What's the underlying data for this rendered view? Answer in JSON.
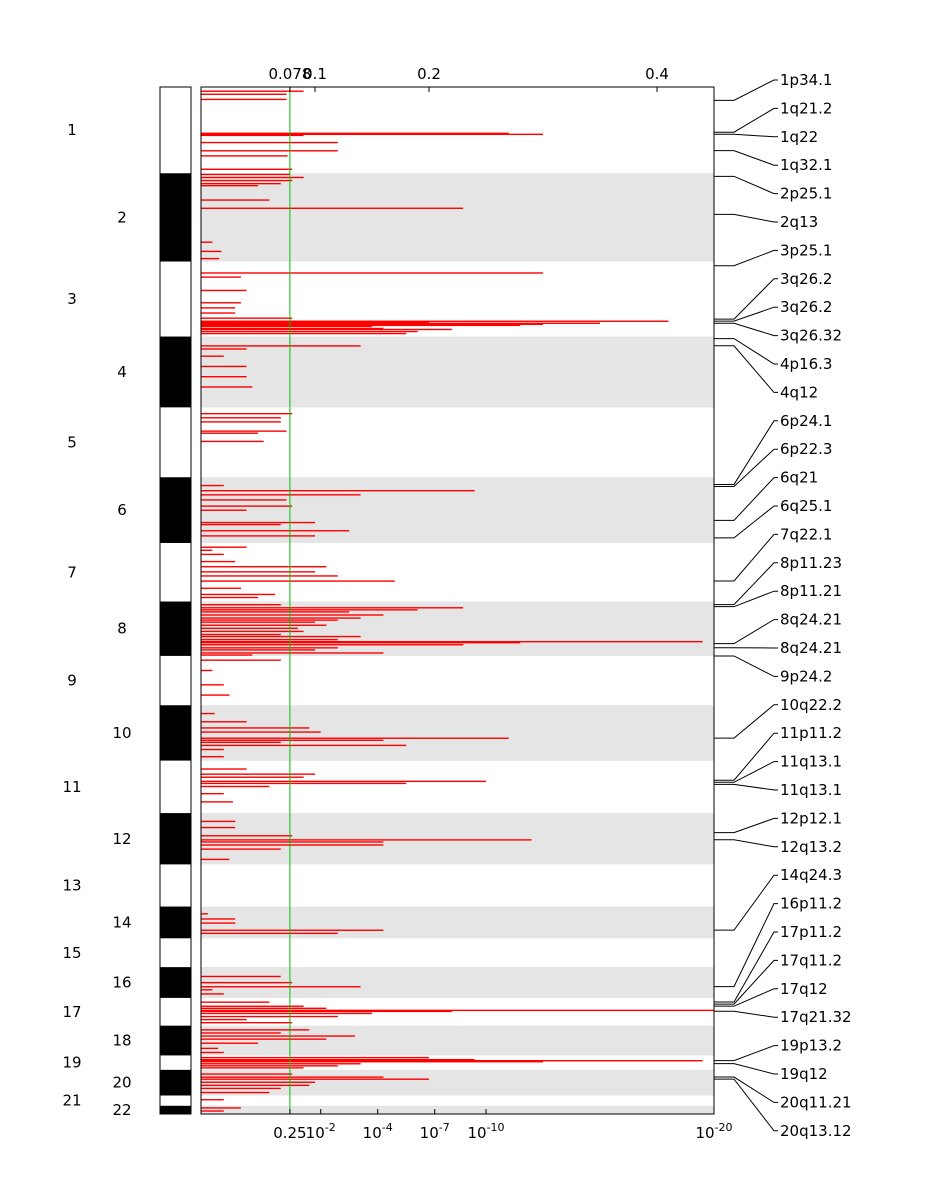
{
  "chart_data": {
    "type": "bar",
    "orientation": "horizontal",
    "title": "",
    "colors": {
      "bar": "#ff0000",
      "threshold_line": "#00c000",
      "band_shade": "#e5e5e5",
      "ideogram_dark": "#000000",
      "ideogram_light": "#ffffff"
    },
    "x_scale_top": {
      "description": "amplitude scale",
      "range": [
        0,
        0.45
      ],
      "ticks": [
        {
          "value": 0.078,
          "label": "0.078"
        },
        {
          "value": 0.1,
          "label": "0.1"
        },
        {
          "value": 0.2,
          "label": "0.2"
        },
        {
          "value": 0.4,
          "label": "0.4"
        }
      ]
    },
    "x_scale_bottom": {
      "description": "q-value scale (log)",
      "ticks": [
        {
          "base": "0.25",
          "exp": "",
          "score": 0.078
        },
        {
          "base": "10",
          "exp": "-2",
          "score": 0.105
        },
        {
          "base": "10",
          "exp": "-4",
          "score": 0.155
        },
        {
          "base": "10",
          "exp": "-7",
          "score": 0.205
        },
        {
          "base": "10",
          "exp": "-10",
          "score": 0.25
        },
        {
          "base": "10",
          "exp": "-20",
          "score": 0.45
        }
      ]
    },
    "threshold": 0.078,
    "genome_extent": [
      0,
      1000
    ],
    "chromosomes": [
      {
        "label": "1",
        "start": 0,
        "end": 84
      },
      {
        "label": "2",
        "start": 84,
        "end": 170
      },
      {
        "label": "3",
        "start": 170,
        "end": 243
      },
      {
        "label": "4",
        "start": 243,
        "end": 312
      },
      {
        "label": "5",
        "start": 312,
        "end": 380
      },
      {
        "label": "6",
        "start": 380,
        "end": 444
      },
      {
        "label": "7",
        "start": 444,
        "end": 501
      },
      {
        "label": "8",
        "start": 501,
        "end": 554
      },
      {
        "label": "9",
        "start": 554,
        "end": 602
      },
      {
        "label": "10",
        "start": 602,
        "end": 656
      },
      {
        "label": "11",
        "start": 656,
        "end": 707
      },
      {
        "label": "12",
        "start": 707,
        "end": 757
      },
      {
        "label": "13",
        "start": 757,
        "end": 798
      },
      {
        "label": "14",
        "start": 798,
        "end": 829
      },
      {
        "label": "15",
        "start": 829,
        "end": 857
      },
      {
        "label": "16",
        "start": 857,
        "end": 887
      },
      {
        "label": "17",
        "start": 887,
        "end": 914
      },
      {
        "label": "18",
        "start": 914,
        "end": 943
      },
      {
        "label": "19",
        "start": 943,
        "end": 957
      },
      {
        "label": "20",
        "start": 957,
        "end": 982
      },
      {
        "label": "21",
        "start": 982,
        "end": 992
      },
      {
        "label": "22",
        "start": 992,
        "end": 1000
      }
    ],
    "peaks": [
      {
        "pos": 4,
        "score": 0.09
      },
      {
        "pos": 7,
        "score": 0.075
      },
      {
        "pos": 12,
        "score": 0.075
      },
      {
        "pos": 45,
        "score": 0.27
      },
      {
        "pos": 46,
        "score": 0.3
      },
      {
        "pos": 47,
        "score": 0.09
      },
      {
        "pos": 54,
        "score": 0.12
      },
      {
        "pos": 62,
        "score": 0.12
      },
      {
        "pos": 67,
        "score": 0.076
      },
      {
        "pos": 80,
        "score": 0.08
      },
      {
        "pos": 85,
        "score": 0.078
      },
      {
        "pos": 88,
        "score": 0.09
      },
      {
        "pos": 91,
        "score": 0.08
      },
      {
        "pos": 94,
        "score": 0.07
      },
      {
        "pos": 96,
        "score": 0.05
      },
      {
        "pos": 110,
        "score": 0.06
      },
      {
        "pos": 118,
        "score": 0.23
      },
      {
        "pos": 151,
        "score": 0.01
      },
      {
        "pos": 160,
        "score": 0.018
      },
      {
        "pos": 167,
        "score": 0.016
      },
      {
        "pos": 181,
        "score": 0.3
      },
      {
        "pos": 185,
        "score": 0.035
      },
      {
        "pos": 198,
        "score": 0.04
      },
      {
        "pos": 210,
        "score": 0.035
      },
      {
        "pos": 215,
        "score": 0.03
      },
      {
        "pos": 220,
        "score": 0.03
      },
      {
        "pos": 225,
        "score": 0.08
      },
      {
        "pos": 228,
        "score": 0.41
      },
      {
        "pos": 229,
        "score": 0.2
      },
      {
        "pos": 230,
        "score": 0.35
      },
      {
        "pos": 231,
        "score": 0.3
      },
      {
        "pos": 232,
        "score": 0.28
      },
      {
        "pos": 233,
        "score": 0.15
      },
      {
        "pos": 235,
        "score": 0.16
      },
      {
        "pos": 236,
        "score": 0.22
      },
      {
        "pos": 238,
        "score": 0.19
      },
      {
        "pos": 240,
        "score": 0.18
      },
      {
        "pos": 252,
        "score": 0.14
      },
      {
        "pos": 255,
        "score": 0.04
      },
      {
        "pos": 262,
        "score": 0.02
      },
      {
        "pos": 272,
        "score": 0.04
      },
      {
        "pos": 282,
        "score": 0.04
      },
      {
        "pos": 292,
        "score": 0.045
      },
      {
        "pos": 318,
        "score": 0.08
      },
      {
        "pos": 322,
        "score": 0.07
      },
      {
        "pos": 326,
        "score": 0.07
      },
      {
        "pos": 335,
        "score": 0.075
      },
      {
        "pos": 337,
        "score": 0.05
      },
      {
        "pos": 345,
        "score": 0.055
      },
      {
        "pos": 388,
        "score": 0.02
      },
      {
        "pos": 393,
        "score": 0.24
      },
      {
        "pos": 397,
        "score": 0.14
      },
      {
        "pos": 402,
        "score": 0.075
      },
      {
        "pos": 408,
        "score": 0.08
      },
      {
        "pos": 412,
        "score": 0.04
      },
      {
        "pos": 424,
        "score": 0.1
      },
      {
        "pos": 426,
        "score": 0.07
      },
      {
        "pos": 432,
        "score": 0.13
      },
      {
        "pos": 437,
        "score": 0.1
      },
      {
        "pos": 448,
        "score": 0.04
      },
      {
        "pos": 451,
        "score": 0.01
      },
      {
        "pos": 455,
        "score": 0.02
      },
      {
        "pos": 462,
        "score": 0.03
      },
      {
        "pos": 467,
        "score": 0.11
      },
      {
        "pos": 472,
        "score": 0.1
      },
      {
        "pos": 476,
        "score": 0.12
      },
      {
        "pos": 481,
        "score": 0.17
      },
      {
        "pos": 488,
        "score": 0.035
      },
      {
        "pos": 494,
        "score": 0.065
      },
      {
        "pos": 497,
        "score": 0.05
      },
      {
        "pos": 504,
        "score": 0.07
      },
      {
        "pos": 507,
        "score": 0.23
      },
      {
        "pos": 509,
        "score": 0.19
      },
      {
        "pos": 511,
        "score": 0.13
      },
      {
        "pos": 514,
        "score": 0.16
      },
      {
        "pos": 517,
        "score": 0.14
      },
      {
        "pos": 519,
        "score": 0.12
      },
      {
        "pos": 521,
        "score": 0.1
      },
      {
        "pos": 524,
        "score": 0.11
      },
      {
        "pos": 527,
        "score": 0.085
      },
      {
        "pos": 530,
        "score": 0.09
      },
      {
        "pos": 533,
        "score": 0.07
      },
      {
        "pos": 535,
        "score": 0.14
      },
      {
        "pos": 538,
        "score": 0.12
      },
      {
        "pos": 540,
        "score": 0.44
      },
      {
        "pos": 541,
        "score": 0.28
      },
      {
        "pos": 543,
        "score": 0.23
      },
      {
        "pos": 546,
        "score": 0.12
      },
      {
        "pos": 548,
        "score": 0.1
      },
      {
        "pos": 551,
        "score": 0.16
      },
      {
        "pos": 553,
        "score": 0.045
      },
      {
        "pos": 558,
        "score": 0.07
      },
      {
        "pos": 568,
        "score": 0.01
      },
      {
        "pos": 582,
        "score": 0.02
      },
      {
        "pos": 592,
        "score": 0.025
      },
      {
        "pos": 610,
        "score": 0.012
      },
      {
        "pos": 618,
        "score": 0.04
      },
      {
        "pos": 624,
        "score": 0.095
      },
      {
        "pos": 628,
        "score": 0.105
      },
      {
        "pos": 634,
        "score": 0.27
      },
      {
        "pos": 636,
        "score": 0.16
      },
      {
        "pos": 638,
        "score": 0.07
      },
      {
        "pos": 641,
        "score": 0.18
      },
      {
        "pos": 645,
        "score": 0.02
      },
      {
        "pos": 652,
        "score": 0.02
      },
      {
        "pos": 664,
        "score": 0.04
      },
      {
        "pos": 669,
        "score": 0.1
      },
      {
        "pos": 672,
        "score": 0.09
      },
      {
        "pos": 676,
        "score": 0.25
      },
      {
        "pos": 678,
        "score": 0.18
      },
      {
        "pos": 681,
        "score": 0.06
      },
      {
        "pos": 688,
        "score": 0.02
      },
      {
        "pos": 696,
        "score": 0.028
      },
      {
        "pos": 715,
        "score": 0.03
      },
      {
        "pos": 721,
        "score": 0.03
      },
      {
        "pos": 729,
        "score": 0.08
      },
      {
        "pos": 733,
        "score": 0.29
      },
      {
        "pos": 735,
        "score": 0.16
      },
      {
        "pos": 738,
        "score": 0.16
      },
      {
        "pos": 742,
        "score": 0.07
      },
      {
        "pos": 752,
        "score": 0.025
      },
      {
        "pos": 805,
        "score": 0.006
      },
      {
        "pos": 810,
        "score": 0.03
      },
      {
        "pos": 814,
        "score": 0.03
      },
      {
        "pos": 821,
        "score": 0.16
      },
      {
        "pos": 824,
        "score": 0.12
      },
      {
        "pos": 866,
        "score": 0.07
      },
      {
        "pos": 872,
        "score": 0.08
      },
      {
        "pos": 876,
        "score": 0.14
      },
      {
        "pos": 879,
        "score": 0.01
      },
      {
        "pos": 883,
        "score": 0.02
      },
      {
        "pos": 891,
        "score": 0.06
      },
      {
        "pos": 895,
        "score": 0.09
      },
      {
        "pos": 897,
        "score": 0.11
      },
      {
        "pos": 899,
        "score": 0.45
      },
      {
        "pos": 900,
        "score": 0.22
      },
      {
        "pos": 902,
        "score": 0.15
      },
      {
        "pos": 905,
        "score": 0.12
      },
      {
        "pos": 908,
        "score": 0.04
      },
      {
        "pos": 911,
        "score": 0.08
      },
      {
        "pos": 918,
        "score": 0.095
      },
      {
        "pos": 921,
        "score": 0.07
      },
      {
        "pos": 924,
        "score": 0.135
      },
      {
        "pos": 927,
        "score": 0.11
      },
      {
        "pos": 931,
        "score": 0.05
      },
      {
        "pos": 936,
        "score": 0.015
      },
      {
        "pos": 940,
        "score": 0.02
      },
      {
        "pos": 945,
        "score": 0.2
      },
      {
        "pos": 947,
        "score": 0.24
      },
      {
        "pos": 948,
        "score": 0.44
      },
      {
        "pos": 949,
        "score": 0.3
      },
      {
        "pos": 951,
        "score": 0.14
      },
      {
        "pos": 953,
        "score": 0.12
      },
      {
        "pos": 955,
        "score": 0.09
      },
      {
        "pos": 961,
        "score": 0.08
      },
      {
        "pos": 964,
        "score": 0.16
      },
      {
        "pos": 966,
        "score": 0.2
      },
      {
        "pos": 969,
        "score": 0.1
      },
      {
        "pos": 972,
        "score": 0.095
      },
      {
        "pos": 975,
        "score": 0.07
      },
      {
        "pos": 979,
        "score": 0.06
      },
      {
        "pos": 986,
        "score": 0.02
      },
      {
        "pos": 994,
        "score": 0.035
      },
      {
        "pos": 997,
        "score": 0.02
      }
    ],
    "cytoband_labels": [
      {
        "label": "1p34.1",
        "pos": 13
      },
      {
        "label": "1q21.2",
        "pos": 44
      },
      {
        "label": "1q22",
        "pos": 46
      },
      {
        "label": "1q32.1",
        "pos": 62
      },
      {
        "label": "2p25.1",
        "pos": 87
      },
      {
        "label": "2q13",
        "pos": 124
      },
      {
        "label": "3p25.1",
        "pos": 174
      },
      {
        "label": "3q26.2",
        "pos": 226
      },
      {
        "label": "3q26.2",
        "pos": 228
      },
      {
        "label": "3q26.32",
        "pos": 230
      },
      {
        "label": "4p16.3",
        "pos": 245
      },
      {
        "label": "4q12",
        "pos": 252
      },
      {
        "label": "6p24.1",
        "pos": 387
      },
      {
        "label": "6p22.3",
        "pos": 389
      },
      {
        "label": "6q21",
        "pos": 422
      },
      {
        "label": "6q25.1",
        "pos": 439
      },
      {
        "label": "7q22.1",
        "pos": 481
      },
      {
        "label": "8p11.23",
        "pos": 504
      },
      {
        "label": "8p11.21",
        "pos": 506
      },
      {
        "label": "8q24.21",
        "pos": 542
      },
      {
        "label": "8q24.21",
        "pos": 546
      },
      {
        "label": "9p24.2",
        "pos": 554
      },
      {
        "label": "10q22.2",
        "pos": 634
      },
      {
        "label": "11p11.2",
        "pos": 675
      },
      {
        "label": "11q13.1",
        "pos": 677
      },
      {
        "label": "11q13.1",
        "pos": 679
      },
      {
        "label": "12p12.1",
        "pos": 726
      },
      {
        "label": "12q13.2",
        "pos": 733
      },
      {
        "label": "14q24.3",
        "pos": 821
      },
      {
        "label": "16p11.2",
        "pos": 876
      },
      {
        "label": "17p11.2",
        "pos": 891
      },
      {
        "label": "17q11.2",
        "pos": 893
      },
      {
        "label": "17q12",
        "pos": 895
      },
      {
        "label": "17q21.32",
        "pos": 900
      },
      {
        "label": "19p13.2",
        "pos": 948
      },
      {
        "label": "19q12",
        "pos": 951
      },
      {
        "label": "20q11.21",
        "pos": 964
      },
      {
        "label": "20q13.12",
        "pos": 966
      }
    ]
  }
}
